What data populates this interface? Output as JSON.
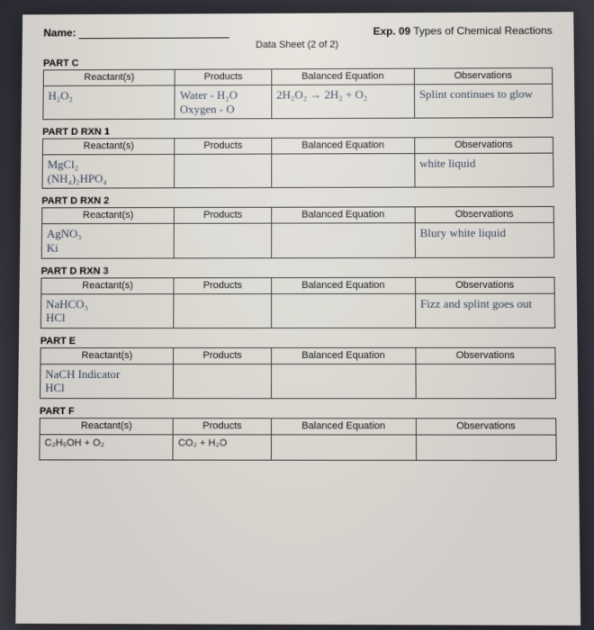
{
  "header": {
    "name_label": "Name:",
    "exp_label": "Exp. 09",
    "exp_title": "Types of Chemical Reactions",
    "sheet_label": "Data Sheet (2 of 2)"
  },
  "columns": {
    "c1": "Reactant(s)",
    "c2": "Products",
    "c3": "Balanced Equation",
    "c4": "Observations"
  },
  "sections": {
    "partC": {
      "label": "PART C",
      "reactants": "H₂O₂",
      "products": "Water - H₂O\nOxygen - O",
      "equation": "2H₂O₂ → 2H₂ + O₂",
      "obs": "Splint continues to glow"
    },
    "partD1": {
      "label": "PART D RXN 1",
      "reactants": "MgCl₂\n(NH₄)₂HPO₄",
      "products": "",
      "equation": "",
      "obs": "white liquid"
    },
    "partD2": {
      "label": "PART D RXN 2",
      "reactants": "AgNO₃\nKi",
      "products": "",
      "equation": "",
      "obs": "Blury white liquid"
    },
    "partD3": {
      "label": "PART D RXN 3",
      "reactants": "NaHCO₃\nHCl",
      "products": "",
      "equation": "",
      "obs": "Fizz and splint goes out"
    },
    "partE": {
      "label": "PART E",
      "reactants": "NaCH Indicator\nHCl",
      "products": "",
      "equation": "",
      "obs": ""
    },
    "partF": {
      "label": "PART F",
      "reactants": "C₂H₅OH + O₂",
      "products": "CO₂ + H₂O",
      "equation": "",
      "obs": ""
    }
  }
}
